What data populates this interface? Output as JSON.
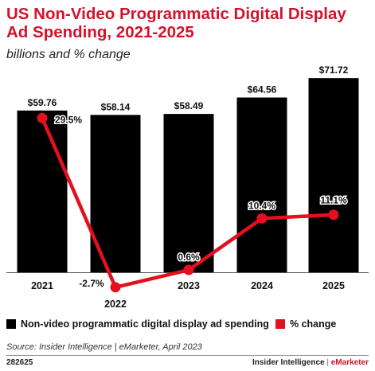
{
  "header": {
    "title": "US Non-Video Programmatic Digital Display Ad Spending, 2021-2025",
    "subtitle": "billions and % change"
  },
  "colors": {
    "bars": "#000000",
    "line": "#e3101f",
    "title": "#d3132b"
  },
  "chart_data": {
    "type": "bar",
    "categories": [
      "2021",
      "2022",
      "2023",
      "2024",
      "2025"
    ],
    "series": [
      {
        "name": "Non-video programmatic digital display ad spending",
        "type": "bar",
        "values": [
          59.76,
          58.14,
          58.49,
          64.56,
          71.72
        ],
        "labels": [
          "$59.76",
          "$58.14",
          "$58.49",
          "$64.56",
          "$71.72"
        ]
      },
      {
        "name": "% change",
        "type": "line",
        "values": [
          29.5,
          -2.7,
          0.6,
          10.4,
          11.1
        ],
        "labels": [
          "29.5%",
          "-2.7%",
          "0.6%",
          "10.4%",
          "11.1%"
        ]
      }
    ],
    "xlabel": "",
    "ylabel": "",
    "grid": false,
    "legend_position": "bottom"
  },
  "legend": {
    "bar_label": "Non-video programmatic digital display ad spending",
    "line_label": "% change"
  },
  "footer": {
    "source": "Source: Insider Intelligence | eMarketer, April 2023",
    "chart_id": "282625",
    "brand_left": "Insider Intelligence",
    "brand_sep": " | ",
    "brand_right": "eMarketer"
  }
}
